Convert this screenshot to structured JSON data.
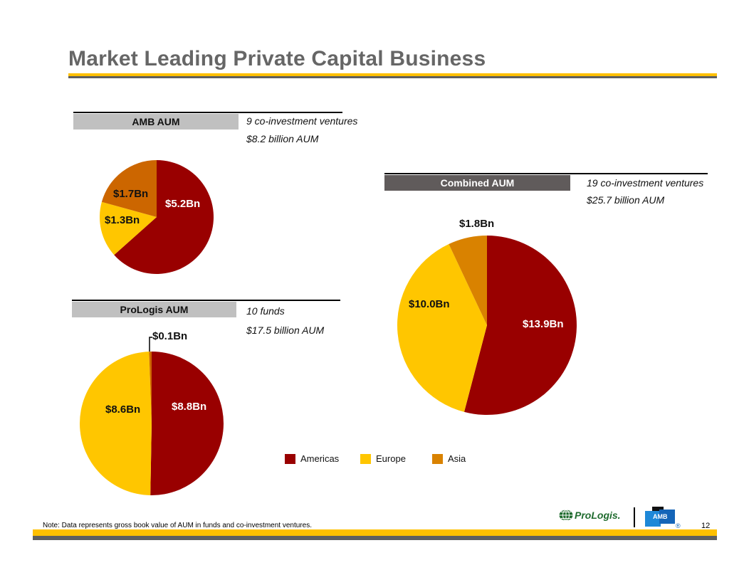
{
  "slide": {
    "title": "Market Leading Private Capital Business",
    "note": "Note: Data represents gross book value of AUM in funds and co-investment ventures.",
    "page_number": "12",
    "logos": {
      "prologis": "ProLogis.",
      "amb": "AMB",
      "registered": "®"
    }
  },
  "colors": {
    "americas": "#990000",
    "europe": "#FFC600",
    "asia": "#CC6600",
    "asia_combined": "#D98200",
    "gold_rule": "#FFC000",
    "grey_rule": "#5f5f5f",
    "title_text": "#666666"
  },
  "legend": [
    {
      "label": "Americas",
      "color": "#990000"
    },
    {
      "label": "Europe",
      "color": "#FFC600"
    },
    {
      "label": "Asia",
      "color": "#D98200"
    }
  ],
  "chart_data": [
    {
      "type": "pie",
      "title": "AMB AUM",
      "description": [
        "9 co-investment ventures",
        "$8.2 billion AUM"
      ],
      "slices": [
        {
          "name": "Americas",
          "value": 5.2,
          "label": "$5.2Bn",
          "color": "#990000"
        },
        {
          "name": "Europe",
          "value": 1.3,
          "label": "$1.3Bn",
          "color": "#FFC600"
        },
        {
          "name": "Asia",
          "value": 1.7,
          "label": "$1.7Bn",
          "color": "#CC6600"
        }
      ],
      "unit": "$Bn"
    },
    {
      "type": "pie",
      "title": "ProLogis AUM",
      "description": [
        "10 funds",
        "$17.5 billion AUM"
      ],
      "slices": [
        {
          "name": "Americas",
          "value": 8.8,
          "label": "$8.8Bn",
          "color": "#990000"
        },
        {
          "name": "Europe",
          "value": 8.6,
          "label": "$8.6Bn",
          "color": "#FFC600"
        },
        {
          "name": "Asia",
          "value": 0.1,
          "label": "$0.1Bn",
          "color": "#CC6600"
        }
      ],
      "unit": "$Bn"
    },
    {
      "type": "pie",
      "title": "Combined AUM",
      "description": [
        "19 co-investment ventures",
        "$25.7 billion AUM"
      ],
      "slices": [
        {
          "name": "Americas",
          "value": 13.9,
          "label": "$13.9Bn",
          "color": "#990000"
        },
        {
          "name": "Europe",
          "value": 10.0,
          "label": "$10.0Bn",
          "color": "#FFC600"
        },
        {
          "name": "Asia",
          "value": 1.8,
          "label": "$1.8Bn",
          "color": "#D98200"
        }
      ],
      "unit": "$Bn"
    }
  ]
}
